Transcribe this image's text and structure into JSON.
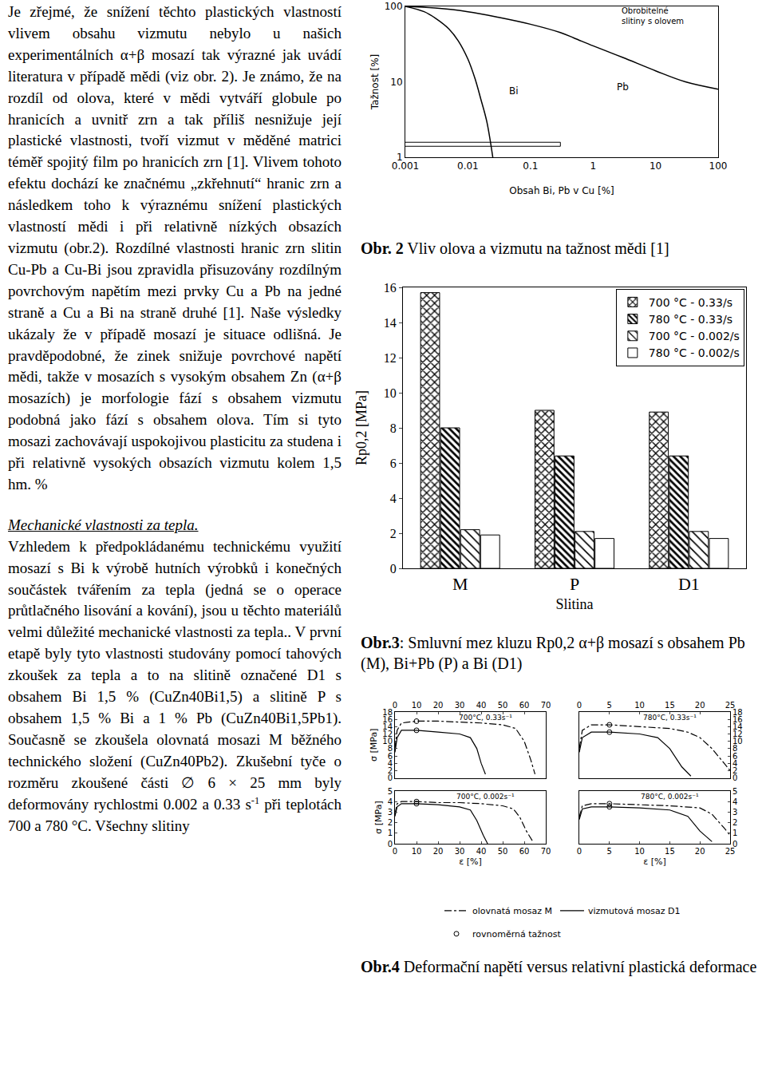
{
  "text": {
    "paragraphs": [
      [
        "Je zřejmé, že snížení těchto plastických vlastností vlivem obsahu vizmutu nebylo u našich experimentálních α+β mosazí tak výrazné jak uvádí literatura v případě mědi (viz obr. 2). Je známo, že na rozdíl od olova, které v mědi vytváří globule po hranicích a uvnitř zrn a tak příliš nesnižuje její plastické vlastnosti, tvoří vizmut v měděné matrici téměř spojitý film po hranicích zrn [1]. Vlivem tohoto efektu dochází ke značnému „zkřehnutí“ hranic zrn a následkem toho k výraznému snížení plastických vlastností mědi i při relativně nízkých obsazích vizmutu (obr.2). Rozdílné vlastnosti hranic zrn slitin Cu-Pb a Cu-Bi jsou zpravidla přisuzovány rozdílným povrchovým napětím mezi prvky Cu a Pb na jedné straně a Cu a Bi na straně druhé [1]. Naše výsledky ukázaly že v případě mosazí je situace odlišná. Je pravděpodobné, že zinek snižuje povrchové napětí mědi, takže v mosazích s vysokým obsahem Zn (α+β mosazích) je morfologie fází s obsahem vizmutu podobná jako fází s obsahem olova. Tím si tyto mosazi zachovávají uspokojivou plasticitu za studena i při relativně vysokých obsazích vizmutu kolem 1,5 hm. %"
      ]
    ],
    "heading": "Mechanické vlastnosti za tepla.",
    "paragraphs_after": [
      [
        "Vzhledem k předpokládanému technickému využití mosazí s Bi k výrobě hutních výrobků i konečných součástek tvářením za tepla (jedná se o operace průtlačného lisování a kování), jsou u těchto materiálů velmi důležité mechanické vlastnosti za tepla.. V první etapě byly tyto vlastnosti studovány pomocí tahových zkoušek za tepla a to na slitině označené D1 s obsahem Bi 1,5 % (CuZn40Bi1,5) a slitině P s obsahem 1,5 % Bi a 1 % Pb (CuZn40Bi1,5Pb1). Současně se zkoušela olovnatá mosazi M běžného technického složení (CuZn40Pb2). Zkušební tyče o rozměru zkoušené části ∅ 6 × 25 mm byly deformovány rychlostmi 0.002 a 0.33 s",
        {
          "sup": "-1"
        },
        " při teplotách 700 a 780 °C. Všechny slitiny"
      ]
    ]
  },
  "chart_data": [
    {
      "type": "line",
      "caption": {
        "label": "Obr. 2",
        "text": " Vliv olova a vizmutu na tažnost mědi [1]"
      },
      "x_label": "Obsah Bi, Pb v Cu [%]",
      "y_label": "Tažnost [%]",
      "log": true,
      "color": "#000000",
      "xlim": [
        0.001,
        100
      ],
      "ylim": [
        1,
        100
      ],
      "xticks": [
        0.001,
        0.01,
        0.1,
        1,
        10,
        100
      ],
      "yticks": [
        1,
        10,
        100
      ],
      "series": [
        {
          "name": "Bi",
          "label_x": 0.055,
          "label_y": 7.5,
          "x": [
            0.001,
            0.002,
            0.003,
            0.005,
            0.007,
            0.01,
            0.013,
            0.016,
            0.02,
            0.025
          ],
          "values": [
            100,
            85,
            70,
            50,
            35,
            20,
            11,
            6,
            3,
            1
          ]
        },
        {
          "name": "Pb",
          "label_x": 3,
          "label_y": 8.5,
          "x": [
            0.001,
            0.003,
            0.01,
            0.03,
            0.1,
            0.3,
            0.5,
            1,
            3,
            10,
            30,
            100
          ],
          "values": [
            100,
            95,
            85,
            72,
            58,
            45,
            38,
            30,
            21,
            14,
            10,
            8
          ]
        }
      ],
      "annotations": [
        {
          "text": "Obrobitelné\nslitiny s olovem",
          "x": 9,
          "y": 75,
          "box_x": [
            0.5,
            2
          ],
          "box_y": [
            25,
            38
          ]
        }
      ]
    },
    {
      "type": "bar",
      "caption": {
        "label": "Obr.3",
        "text": ": Smluvní mez kluzu Rp0,2 α+β mosazí s obsahem Pb (M), Bi+Pb (P) a Bi (D1)"
      },
      "x_label": "Slitina",
      "y_label": "Rp0,2 [MPa]",
      "categories": [
        "M",
        "P",
        "D1"
      ],
      "ylim": [
        0,
        16
      ],
      "yticks": [
        0,
        2,
        4,
        6,
        8,
        10,
        12,
        14,
        16
      ],
      "legend": "top right",
      "series": [
        {
          "name": "700 °C - 0.33/s",
          "values": [
            15.7,
            9.0,
            8.9
          ]
        },
        {
          "name": "780 °C - 0.33/s",
          "values": [
            8.0,
            6.4,
            6.4
          ]
        },
        {
          "name": "700 °C - 0.002/s",
          "values": [
            2.2,
            2.1,
            2.1
          ]
        },
        {
          "name": "780 °C - 0.002/s",
          "values": [
            1.9,
            1.7,
            1.7
          ]
        }
      ]
    },
    {
      "type": "line",
      "caption": {
        "label": "Obr.4",
        "text": " Deformační napětí versus relativní plastická deformace"
      },
      "x_label": "ε [%]",
      "y_label": "σ [MPa]",
      "legend": "bottom",
      "panels": [
        {
          "title": "700°C, 0.33s⁻¹",
          "xlim": [
            0,
            70
          ],
          "xticks": [
            0,
            10,
            20,
            30,
            40,
            50,
            60,
            70
          ],
          "ylim": [
            0,
            18
          ],
          "yticks": [
            0,
            2,
            4,
            6,
            8,
            10,
            12,
            14,
            16,
            18
          ],
          "series": [
            {
              "name": "olovnatá mosaz M",
              "line_style": "dashdot",
              "x": [
                0,
                1,
                3,
                10,
                20,
                30,
                40,
                50,
                56,
                60,
                63,
                65
              ],
              "values": [
                8,
                13,
                15,
                15.5,
                15.5,
                15.3,
                15,
                14.5,
                13.5,
                10,
                5,
                1
              ]
            },
            {
              "name": "vizmutová mosaz D1",
              "line_style": "solid",
              "x": [
                0,
                1,
                3,
                10,
                20,
                30,
                35,
                38,
                40,
                42
              ],
              "values": [
                7,
                11,
                13,
                13,
                12.5,
                12,
                11,
                8,
                4,
                1
              ]
            },
            {
              "name": "rovnoměrná tažnost",
              "type": "scatter",
              "marker": "circle-open",
              "x": [
                10,
                10
              ],
              "values": [
                15.5,
                13
              ]
            }
          ]
        },
        {
          "title": "780°C, 0.33s⁻¹",
          "xlim": [
            0,
            25
          ],
          "xticks": [
            0,
            5,
            10,
            15,
            20,
            25
          ],
          "ylim": [
            0,
            18
          ],
          "yticks": [
            0,
            2,
            4,
            6,
            8,
            10,
            12,
            14,
            16,
            18
          ],
          "series": [
            {
              "name": "olovnatá mosaz M",
              "line_style": "dashdot",
              "x": [
                0,
                0.5,
                2,
                5,
                10,
                15,
                18,
                20,
                22,
                24,
                25
              ],
              "values": [
                8,
                13,
                14.5,
                14.5,
                14,
                13.5,
                12.5,
                11,
                8,
                4,
                2
              ]
            },
            {
              "name": "vizmutová mosaz D1",
              "line_style": "solid",
              "x": [
                0,
                0.5,
                2,
                5,
                10,
                13,
                15,
                17,
                18.5
              ],
              "values": [
                7,
                11,
                12.5,
                12.5,
                12,
                11,
                8,
                3,
                0.5
              ]
            },
            {
              "name": "rovnoměrná tažnost",
              "type": "scatter",
              "marker": "circle-open",
              "x": [
                5,
                5
              ],
              "values": [
                14.5,
                12.5
              ]
            }
          ]
        },
        {
          "title": "700°C, 0.002s⁻¹",
          "xlim": [
            0,
            70
          ],
          "xticks": [
            0,
            10,
            20,
            30,
            40,
            50,
            60,
            70
          ],
          "ylim": [
            0,
            5
          ],
          "yticks": [
            0,
            1,
            2,
            3,
            4,
            5
          ],
          "series": [
            {
              "name": "olovnatá mosaz M",
              "line_style": "dashdot",
              "x": [
                0,
                1,
                3,
                10,
                20,
                30,
                40,
                50,
                55,
                58,
                61,
                64
              ],
              "values": [
                2.8,
                3.8,
                4.0,
                4.0,
                3.9,
                3.9,
                3.8,
                3.6,
                3.3,
                2.5,
                1.2,
                0.2
              ]
            },
            {
              "name": "vizmutová mosaz D1",
              "line_style": "solid",
              "x": [
                0,
                1,
                3,
                10,
                20,
                30,
                35,
                38,
                41,
                43
              ],
              "values": [
                2.6,
                3.5,
                3.8,
                3.8,
                3.7,
                3.5,
                3.2,
                2.2,
                0.8,
                0
              ]
            },
            {
              "name": "rovnoměrná tažnost",
              "type": "scatter",
              "marker": "circle-open",
              "x": [
                10,
                10
              ],
              "values": [
                4.0,
                3.8
              ]
            }
          ]
        },
        {
          "title": "780°C, 0.002s⁻¹",
          "xlim": [
            0,
            25
          ],
          "xticks": [
            0,
            5,
            10,
            15,
            20,
            25
          ],
          "ylim": [
            0,
            5
          ],
          "yticks": [
            0,
            1,
            2,
            3,
            4,
            5
          ],
          "series": [
            {
              "name": "olovnatá mosaz M",
              "line_style": "dashdot",
              "x": [
                0,
                0.5,
                2,
                5,
                10,
                15,
                20,
                22,
                24,
                25
              ],
              "values": [
                2.5,
                3.6,
                3.8,
                3.8,
                3.7,
                3.6,
                3.4,
                2.8,
                1.5,
                0.8
              ]
            },
            {
              "name": "vizmutová mosaz D1",
              "line_style": "solid",
              "x": [
                0,
                0.5,
                2,
                5,
                10,
                15,
                18,
                20,
                22
              ],
              "values": [
                2.3,
                3.3,
                3.5,
                3.5,
                3.4,
                3.2,
                2.6,
                1.2,
                0.2
              ]
            },
            {
              "name": "rovnoměrná tažnost",
              "type": "scatter",
              "marker": "circle-open",
              "x": [
                5,
                5
              ],
              "values": [
                3.8,
                3.5
              ]
            }
          ]
        }
      ]
    }
  ]
}
